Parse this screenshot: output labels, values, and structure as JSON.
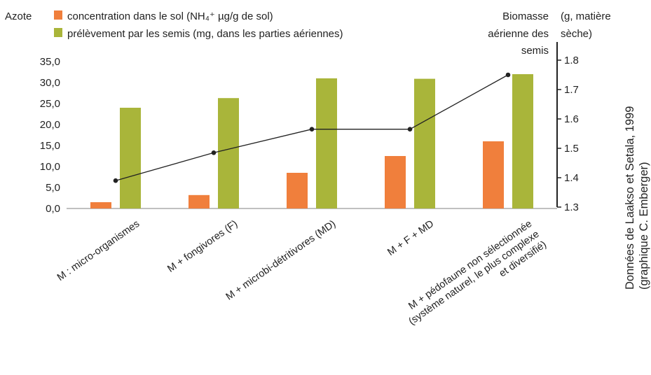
{
  "chart_data": {
    "type": "bar",
    "categories": [
      [
        "M : micro-organismes"
      ],
      [
        "M + fongivores (F)"
      ],
      [
        "M + microbi-détritivores (MD)"
      ],
      [
        "M + F + MD"
      ],
      [
        "M + pédofaune non sélectionnée",
        "(système naturel, le plus complexe",
        "et diversifié)"
      ]
    ],
    "legend_prefix": "Azote",
    "series": [
      {
        "name": "concentration dans le sol (NH₄⁺ µg/g de  sol)",
        "type": "bar",
        "axis": "left",
        "color": "#f07f3c",
        "values": [
          1.5,
          3.2,
          8.5,
          12.5,
          16.0
        ]
      },
      {
        "name": "prélèvement par les semis (mg, dans les parties aériennes)",
        "type": "bar",
        "axis": "left",
        "color": "#a9b53a",
        "values": [
          24.0,
          26.3,
          31.0,
          30.9,
          32.0
        ]
      },
      {
        "name": "Biomasse aérienne des semis",
        "type": "line",
        "axis": "right",
        "color": "#222222",
        "values": [
          1.39,
          1.485,
          1.565,
          1.565,
          1.75
        ]
      }
    ],
    "y_left": {
      "ylim": [
        0,
        35
      ],
      "ticks": [
        "0,0",
        "5,0",
        "10,0",
        "15,0",
        "20,0",
        "25,0",
        "30,0",
        "35,0"
      ]
    },
    "y_right": {
      "ylim": [
        1.3,
        1.8
      ],
      "ticks": [
        "1.3",
        "1.4",
        "1.5",
        "1.6",
        "1.7",
        "1.8"
      ],
      "label_lines": [
        "Biomasse",
        "aérienne des",
        "semis"
      ],
      "unit_lines": [
        "(g, matière",
        "sèche)"
      ]
    },
    "source_lines": [
      "Données de Laakso et Setala, 1999",
      "(graphique C. Emberger)"
    ],
    "grid": false,
    "legend_position": "top-left"
  }
}
